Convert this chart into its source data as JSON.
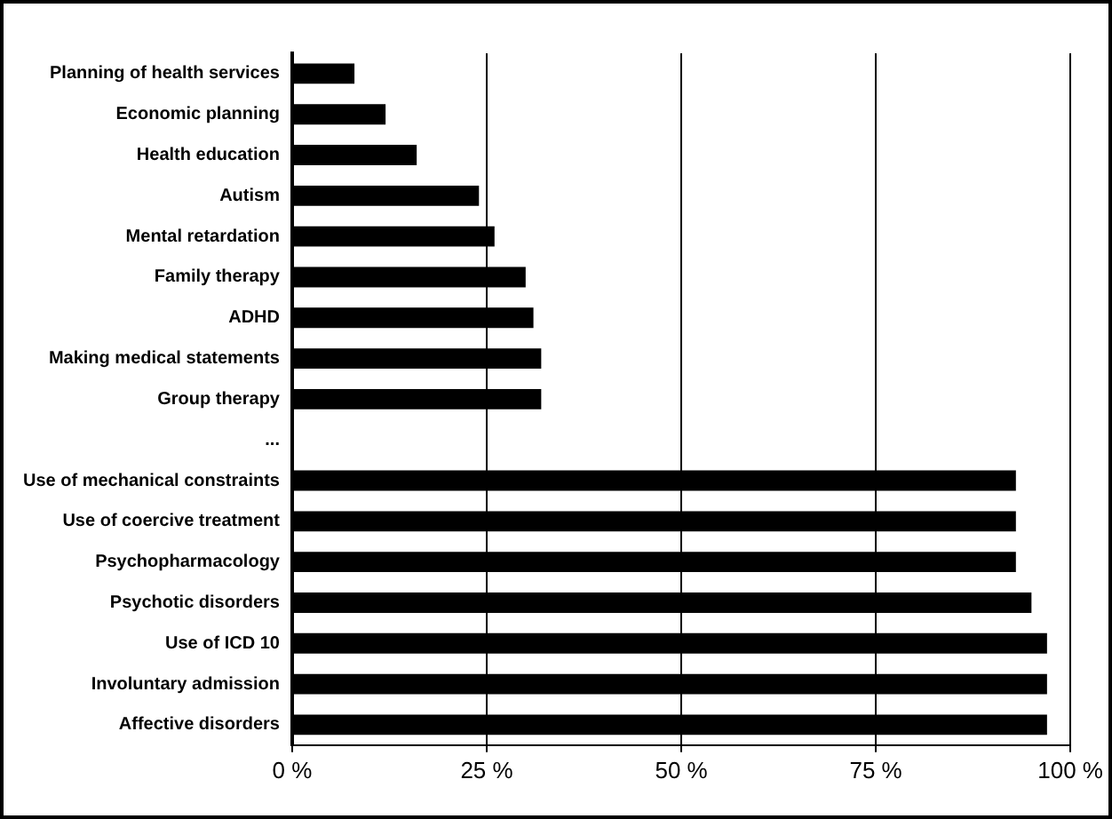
{
  "chart_data": {
    "type": "bar",
    "orientation": "horizontal",
    "categories": [
      "Planning of health services",
      "Economic planning",
      "Health education",
      "Autism",
      "Mental retardation",
      "Family therapy",
      "ADHD",
      "Making medical statements",
      "Group therapy",
      "...",
      "Use of mechanical constraints",
      "Use of coercive treatment",
      "Psychopharmacology",
      "Psychotic disorders",
      "Use of ICD 10",
      "Involuntary admission",
      "Affective disorders"
    ],
    "values": [
      8,
      12,
      16,
      24,
      26,
      30,
      31,
      32,
      32,
      null,
      93,
      93,
      93,
      95,
      97,
      97,
      97
    ],
    "color": "#000000",
    "xlim": [
      0,
      100
    ],
    "xticks": [
      {
        "value": 0,
        "label": "0 %"
      },
      {
        "value": 25,
        "label": "25 %"
      },
      {
        "value": 50,
        "label": "50 %"
      },
      {
        "value": 75,
        "label": "75 %"
      },
      {
        "value": 100,
        "label": "100 %"
      }
    ],
    "grid": "x",
    "legend": false
  }
}
